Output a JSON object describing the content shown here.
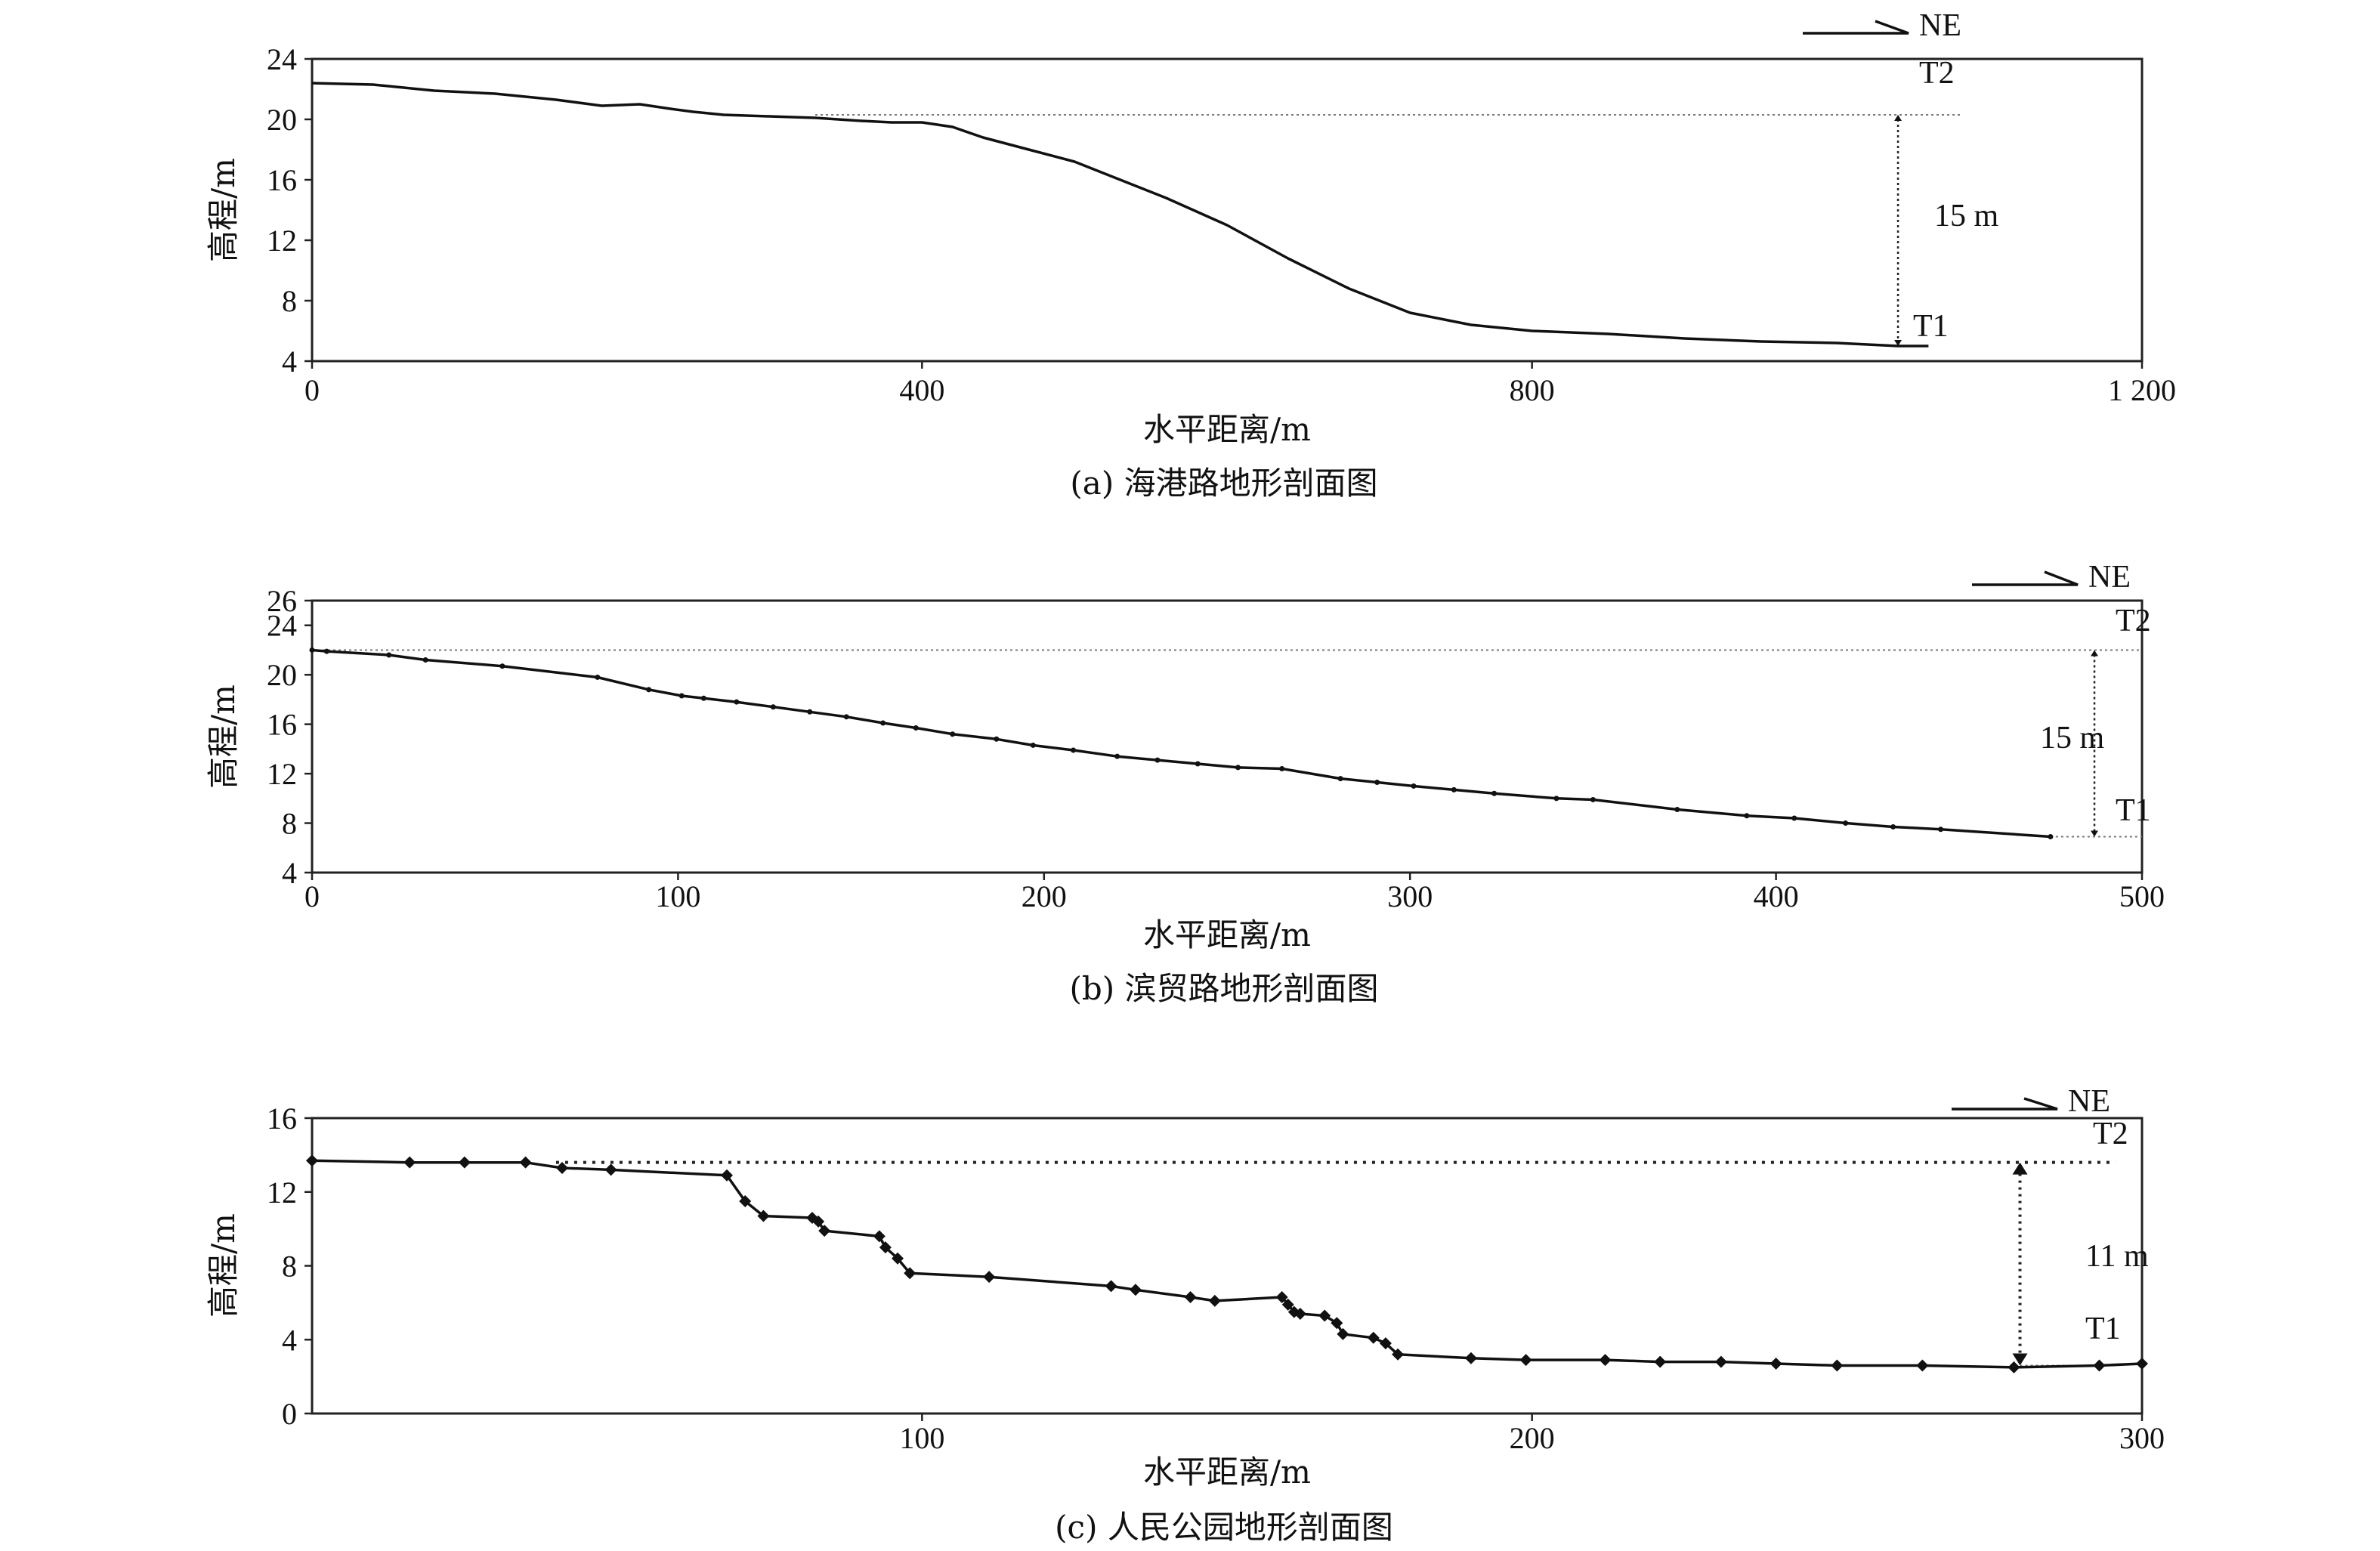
{
  "chart_data": [
    {
      "type": "line",
      "title": "",
      "caption": "(a) 海港路地形剖面图",
      "xlabel": "水平距离/m",
      "ylabel": "高程/m",
      "xlim": [
        0,
        1200
      ],
      "ylim": [
        4,
        24
      ],
      "xticks": [
        "0",
        "400",
        "800",
        "1 200"
      ],
      "xtick_values": [
        0,
        400,
        800,
        1200
      ],
      "yticks": [
        "4",
        "8",
        "12",
        "16",
        "20",
        "24"
      ],
      "ytick_values": [
        4,
        8,
        12,
        16,
        20,
        24
      ],
      "markers": false,
      "x": [
        0,
        40,
        80,
        120,
        160,
        190,
        215,
        235,
        250,
        270,
        300,
        330,
        360,
        380,
        400,
        420,
        440,
        470,
        500,
        530,
        560,
        600,
        640,
        680,
        720,
        760,
        800,
        850,
        900,
        950,
        1000,
        1040,
        1060
      ],
      "y": [
        22.4,
        22.3,
        21.9,
        21.7,
        21.3,
        20.9,
        21.0,
        20.7,
        20.5,
        20.3,
        20.2,
        20.1,
        19.9,
        19.8,
        19.8,
        19.5,
        18.8,
        18.0,
        17.2,
        16.0,
        14.8,
        13.0,
        10.8,
        8.8,
        7.2,
        6.4,
        6.0,
        5.8,
        5.5,
        5.3,
        5.2,
        5.0,
        5.0
      ],
      "ref_level_T2": 20.3,
      "ref_level_T1": 5.0,
      "dim_x": 1040,
      "labels": {
        "upper": "T2",
        "lower": "T1",
        "height": "15 m",
        "direction": "NE"
      }
    },
    {
      "type": "line",
      "title": "",
      "caption": "(b) 滨贸路地形剖面图",
      "xlabel": "水平距离/m",
      "ylabel": "高程/m",
      "xlim": [
        0,
        500
      ],
      "ylim": [
        4,
        26
      ],
      "xticks": [
        "0",
        "100",
        "200",
        "300",
        "400",
        "500"
      ],
      "xtick_values": [
        0,
        100,
        200,
        300,
        400,
        500
      ],
      "yticks": [
        "4",
        "8",
        "12",
        "16",
        "20",
        "24",
        "26"
      ],
      "ytick_values": [
        4,
        8,
        12,
        16,
        20,
        24,
        26
      ],
      "markers": true,
      "x": [
        0,
        4,
        21,
        31,
        52,
        78,
        92,
        101,
        107,
        116,
        126,
        136,
        146,
        156,
        165,
        175,
        187,
        197,
        208,
        220,
        231,
        242,
        253,
        265,
        281,
        291,
        301,
        312,
        323,
        340,
        350,
        373,
        392,
        405,
        419,
        432,
        445,
        475
      ],
      "y": [
        22.0,
        21.9,
        21.6,
        21.2,
        20.7,
        19.8,
        18.8,
        18.3,
        18.1,
        17.8,
        17.4,
        17.0,
        16.6,
        16.1,
        15.7,
        15.2,
        14.8,
        14.3,
        13.9,
        13.4,
        13.1,
        12.8,
        12.5,
        12.4,
        11.6,
        11.3,
        11.0,
        10.7,
        10.4,
        10.0,
        9.9,
        9.1,
        8.6,
        8.4,
        8.0,
        7.7,
        7.5,
        6.9
      ],
      "ref_level_T2": 22.0,
      "ref_level_T1": 6.9,
      "dim_x": 487,
      "labels": {
        "upper": "T2",
        "lower": "T1",
        "height": "15 m",
        "direction": "NE"
      }
    },
    {
      "type": "line",
      "title": "",
      "caption": "(c) 人民公园地形剖面图",
      "xlabel": "水平距离/m",
      "ylabel": "高程/m",
      "xlim": [
        0,
        300
      ],
      "ylim": [
        0,
        16
      ],
      "xticks": [
        "100",
        "200",
        "300"
      ],
      "xtick_values": [
        100,
        200,
        300
      ],
      "yticks": [
        "0",
        "4",
        "8",
        "12",
        "16"
      ],
      "ytick_values": [
        0,
        4,
        8,
        12,
        16
      ],
      "markers": true,
      "x": [
        0,
        16,
        25,
        35,
        41,
        49,
        68,
        71,
        74,
        82,
        83,
        84,
        93,
        94,
        96,
        98,
        111,
        131,
        135,
        144,
        148,
        159,
        160,
        161,
        162,
        166,
        168,
        169,
        174,
        176,
        178,
        190,
        199,
        212,
        221,
        231,
        240,
        250,
        264,
        279,
        293,
        300
      ],
      "y": [
        13.7,
        13.6,
        13.6,
        13.6,
        13.3,
        13.2,
        12.9,
        11.5,
        10.7,
        10.6,
        10.4,
        9.9,
        9.6,
        9.0,
        8.4,
        7.6,
        7.4,
        6.9,
        6.7,
        6.3,
        6.1,
        6.3,
        5.9,
        5.5,
        5.4,
        5.3,
        4.9,
        4.3,
        4.1,
        3.8,
        3.2,
        3.0,
        2.9,
        2.9,
        2.8,
        2.8,
        2.7,
        2.6,
        2.6,
        2.5,
        2.6,
        2.7
      ],
      "ref_level_T2": 13.6,
      "ref_level_T1": 2.6,
      "dim_x": 280,
      "labels": {
        "upper": "T2",
        "lower": "T1",
        "height": "11 m",
        "direction": "NE"
      }
    }
  ]
}
